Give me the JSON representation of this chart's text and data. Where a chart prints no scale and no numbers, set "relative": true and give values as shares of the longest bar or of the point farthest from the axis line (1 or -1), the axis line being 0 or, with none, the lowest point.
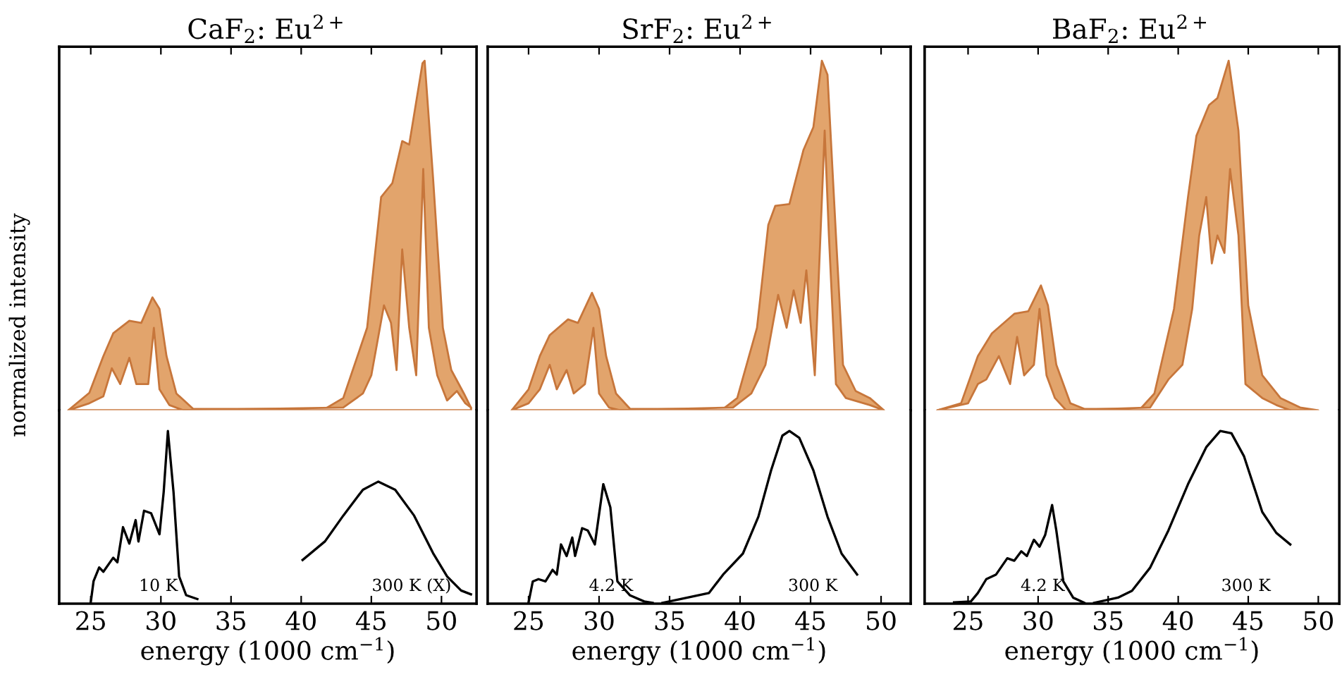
{
  "chart_data": [
    {
      "type": "area",
      "title": "CaF$_{2}$: Eu$^{2+}$",
      "ylabel": "normalized intensity",
      "relative": true,
      "tick_labels": false,
      "xlim": [
        22.75,
        52.5
      ],
      "xticks": [
        25,
        30,
        35,
        40,
        45,
        50
      ],
      "series": [
        {
          "color": "#e2a46c",
          "x": [
            23.4,
            24.9,
            25.9,
            26.6,
            27.75,
            28.6,
            29.4,
            29.9,
            30.4,
            31.1,
            32.3,
            41.7,
            43.0,
            44.7,
            45.7,
            46.5,
            47.2,
            47.7,
            48.65,
            48.8,
            49.4,
            50.1,
            50.7,
            51.6,
            52.1
          ],
          "values": [
            0,
            0.05,
            0.155,
            0.22,
            0.256,
            0.25,
            0.323,
            0.29,
            0.155,
            0.048,
            0.004,
            0.004,
            0.035,
            0.236,
            0.61,
            0.65,
            0.77,
            0.76,
            0.993,
            1.0,
            0.665,
            0.236,
            0.115,
            0.048,
            0.008
          ]
        },
        {
          "color": "#ffffff",
          "x": [
            23.4,
            24.9,
            25.9,
            26.5,
            27.1,
            27.75,
            28.25,
            29.1,
            29.5,
            29.9,
            30.6,
            31.6,
            43.0,
            44.4,
            45.0,
            45.9,
            46.4,
            46.8,
            47.2,
            47.7,
            48.2,
            48.7,
            49.1,
            49.7,
            50.4,
            51.1,
            51.7,
            52.1
          ],
          "values": [
            0,
            0.02,
            0.04,
            0.12,
            0.075,
            0.15,
            0.075,
            0.075,
            0.236,
            0.06,
            0.015,
            0,
            0.008,
            0.048,
            0.1,
            0.3,
            0.25,
            0.115,
            0.46,
            0.236,
            0.1,
            0.69,
            0.236,
            0.1,
            0.028,
            0.055,
            0.02,
            0.008
          ]
        }
      ]
    },
    {
      "type": "line",
      "xlabel": "energy (1000 cm$^{−1}$)",
      "relative": true,
      "tick_labels": "x",
      "xlim": [
        22.75,
        52.5
      ],
      "xticks": [
        25,
        30,
        35,
        40,
        45,
        50
      ],
      "series": [
        {
          "name": "10 K",
          "color": "#000000",
          "x": [
            25.0,
            25.2,
            25.6,
            25.9,
            26.6,
            26.9,
            27.3,
            27.75,
            28.2,
            28.4,
            28.8,
            29.3,
            29.9,
            30.2,
            30.5,
            30.9,
            31.3,
            31.8,
            32.6
          ],
          "values": [
            0.008,
            0.13,
            0.21,
            0.185,
            0.266,
            0.24,
            0.443,
            0.348,
            0.484,
            0.36,
            0.538,
            0.524,
            0.402,
            0.647,
            1.0,
            0.647,
            0.158,
            0.049,
            0.027
          ]
        },
        {
          "name": "300 K (X)",
          "color": "#000000",
          "x": [
            40.1,
            41.7,
            43.0,
            44.4,
            45.5,
            46.7,
            48.05,
            49.4,
            50.4,
            51.4,
            52.1
          ],
          "values": [
            0.253,
            0.361,
            0.51,
            0.66,
            0.707,
            0.66,
            0.51,
            0.293,
            0.158,
            0.076,
            0.054
          ]
        }
      ]
    },
    {
      "type": "area",
      "title": "SrF$_{2}$: Eu$^{2+}$",
      "relative": true,
      "tick_labels": false,
      "xlim": [
        22.1,
        52.1
      ],
      "xticks": [
        25,
        30,
        35,
        40,
        45,
        50
      ],
      "series": [
        {
          "color": "#e2a46c",
          "x": [
            23.8,
            25.0,
            25.8,
            26.5,
            27.8,
            28.5,
            29.5,
            30.0,
            30.5,
            31.2,
            32.2,
            38.8,
            39.8,
            41.2,
            42.0,
            42.5,
            43.5,
            44.5,
            45.2,
            45.8,
            46.2,
            46.8,
            47.3,
            48.2,
            49.2,
            50.2
          ],
          "values": [
            0,
            0.06,
            0.155,
            0.215,
            0.26,
            0.25,
            0.336,
            0.29,
            0.155,
            0.048,
            0.004,
            0.004,
            0.035,
            0.236,
            0.53,
            0.585,
            0.59,
            0.745,
            0.81,
            1.0,
            0.96,
            0.5,
            0.13,
            0.055,
            0.035,
            0
          ]
        },
        {
          "color": "#ffffff",
          "x": [
            23.8,
            25.0,
            25.8,
            26.5,
            27.0,
            27.7,
            28.2,
            29.0,
            29.6,
            30.0,
            30.7,
            31.5,
            39.5,
            40.8,
            41.8,
            42.7,
            43.3,
            43.8,
            44.3,
            44.7,
            45.3,
            46.0,
            46.3,
            46.8,
            47.5,
            49.2,
            50.2
          ],
          "values": [
            0,
            0.02,
            0.06,
            0.13,
            0.06,
            0.115,
            0.048,
            0.075,
            0.236,
            0.048,
            0.008,
            0,
            0.008,
            0.048,
            0.13,
            0.33,
            0.236,
            0.343,
            0.25,
            0.4,
            0.1,
            0.8,
            0.5,
            0.075,
            0.035,
            0.015,
            0
          ]
        }
      ]
    },
    {
      "type": "line",
      "xlabel": "energy (1000 cm$^{−1}$)",
      "relative": true,
      "tick_labels": "x",
      "xlim": [
        22.1,
        52.1
      ],
      "xticks": [
        25,
        30,
        35,
        40,
        45,
        50
      ],
      "series": [
        {
          "name": "4.2 K",
          "color": "#000000",
          "x": [
            25.0,
            25.3,
            25.7,
            26.2,
            26.7,
            27.0,
            27.3,
            27.7,
            28.1,
            28.3,
            28.8,
            29.2,
            29.7,
            30.3,
            30.8,
            31.3,
            32.2,
            33.2,
            33.8
          ],
          "values": [
            0.008,
            0.129,
            0.142,
            0.129,
            0.196,
            0.169,
            0.343,
            0.276,
            0.383,
            0.276,
            0.437,
            0.424,
            0.343,
            0.692,
            0.558,
            0.129,
            0.048,
            0.013,
            0.005
          ]
        },
        {
          "name": "300 K",
          "color": "#000000",
          "x": [
            34.5,
            35.8,
            37.8,
            38.8,
            40.2,
            41.3,
            42.2,
            43.0,
            43.5,
            44.2,
            45.2,
            46.2,
            47.2,
            48.3
          ],
          "values": [
            0.005,
            0.027,
            0.062,
            0.169,
            0.29,
            0.504,
            0.772,
            0.973,
            1.0,
            0.96,
            0.772,
            0.504,
            0.29,
            0.169
          ]
        }
      ]
    },
    {
      "type": "area",
      "title": "BaF$_{2}$: Eu$^{2+}$",
      "relative": true,
      "tick_labels": false,
      "xlim": [
        21.9,
        51.5
      ],
      "xticks": [
        25,
        30,
        35,
        40,
        45,
        50
      ],
      "series": [
        {
          "color": "#e2a46c",
          "x": [
            22.8,
            24.5,
            25.7,
            26.7,
            28.3,
            29.3,
            30.2,
            30.7,
            31.3,
            32.3,
            33.3,
            37.3,
            38.3,
            39.7,
            40.7,
            41.3,
            42.2,
            42.8,
            43.6,
            44.3,
            45.0,
            46.0,
            47.3,
            48.7,
            50.0
          ],
          "values": [
            0,
            0.02,
            0.155,
            0.22,
            0.276,
            0.283,
            0.357,
            0.3,
            0.13,
            0.02,
            0.004,
            0.004,
            0.048,
            0.29,
            0.61,
            0.785,
            0.873,
            0.893,
            1.0,
            0.8,
            0.3,
            0.1,
            0.035,
            0.008,
            0
          ]
        },
        {
          "color": "#ffffff",
          "x": [
            22.8,
            25.0,
            25.7,
            26.3,
            27.2,
            28.0,
            28.5,
            29.0,
            29.7,
            30.1,
            30.6,
            31.2,
            32.0,
            38.0,
            39.3,
            40.3,
            41.0,
            41.5,
            42.0,
            42.4,
            42.8,
            43.3,
            43.7,
            44.3,
            44.8,
            46.0,
            47.0,
            48.0
          ],
          "values": [
            0,
            0.02,
            0.075,
            0.088,
            0.155,
            0.075,
            0.21,
            0.1,
            0.13,
            0.29,
            0.1,
            0.035,
            0,
            0.008,
            0.088,
            0.13,
            0.29,
            0.5,
            0.61,
            0.42,
            0.5,
            0.45,
            0.69,
            0.5,
            0.075,
            0.035,
            0.015,
            0
          ]
        }
      ]
    },
    {
      "type": "line",
      "xlabel": "energy (1000 cm$^{−1}$)",
      "relative": true,
      "tick_labels": "x",
      "xlim": [
        21.9,
        51.5
      ],
      "xticks": [
        25,
        30,
        35,
        40,
        45,
        50
      ],
      "series": [
        {
          "name": "4.2 K",
          "color": "#000000",
          "x": [
            24.0,
            25.2,
            25.7,
            26.3,
            27.0,
            27.8,
            28.3,
            28.8,
            29.2,
            29.7,
            30.1,
            30.5,
            31.0,
            31.3,
            31.8,
            32.5,
            33.3
          ],
          "values": [
            0.008,
            0.013,
            0.062,
            0.142,
            0.169,
            0.263,
            0.249,
            0.303,
            0.276,
            0.37,
            0.33,
            0.397,
            0.571,
            0.424,
            0.129,
            0.035,
            0.005
          ]
        },
        {
          "name": "300 K",
          "color": "#000000",
          "x": [
            34.0,
            35.7,
            36.7,
            38.0,
            39.3,
            40.7,
            42.0,
            43.0,
            43.8,
            44.7,
            46.0,
            47.0,
            48.0
          ],
          "values": [
            0.005,
            0.035,
            0.075,
            0.209,
            0.424,
            0.692,
            0.906,
            1.0,
            0.987,
            0.853,
            0.531,
            0.41,
            0.343
          ]
        }
      ]
    }
  ]
}
